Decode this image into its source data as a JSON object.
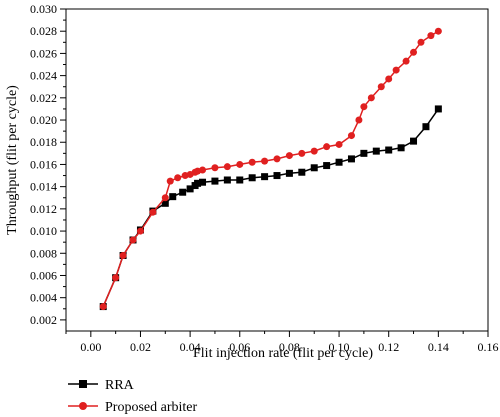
{
  "chart_data": {
    "type": "line",
    "xlabel": "Flit injection rate (flit per cycle)",
    "ylabel": "Throughput (flit per cycle)",
    "xlim": [
      -0.01,
      0.16
    ],
    "ylim": [
      0.001,
      0.03
    ],
    "x_ticks": [
      "0.00",
      "0.02",
      "0.04",
      "0.06",
      "0.08",
      "0.10",
      "0.12",
      "0.14",
      "0.16"
    ],
    "y_ticks": [
      "0.002",
      "0.004",
      "0.006",
      "0.008",
      "0.010",
      "0.012",
      "0.014",
      "0.016",
      "0.018",
      "0.020",
      "0.022",
      "0.024",
      "0.026",
      "0.028",
      "0.030"
    ],
    "grid": false,
    "legend_position": "bottom-left",
    "series": [
      {
        "name": "RRA",
        "color": "#000000",
        "marker": "square",
        "x": [
          0.005,
          0.01,
          0.013,
          0.017,
          0.02,
          0.025,
          0.03,
          0.033,
          0.037,
          0.04,
          0.042,
          0.043,
          0.045,
          0.05,
          0.055,
          0.06,
          0.065,
          0.07,
          0.075,
          0.08,
          0.085,
          0.09,
          0.095,
          0.1,
          0.105,
          0.11,
          0.115,
          0.12,
          0.125,
          0.13,
          0.135,
          0.14
        ],
        "y": [
          0.0032,
          0.0058,
          0.0078,
          0.0092,
          0.0101,
          0.0118,
          0.0125,
          0.0131,
          0.0135,
          0.0138,
          0.0141,
          0.0143,
          0.0144,
          0.0145,
          0.0146,
          0.0146,
          0.0148,
          0.0149,
          0.015,
          0.0152,
          0.0153,
          0.0157,
          0.0159,
          0.0162,
          0.0165,
          0.017,
          0.0172,
          0.0173,
          0.0175,
          0.0181,
          0.0194,
          0.021
        ]
      },
      {
        "name": "Proposed arbiter",
        "color": "#e02020",
        "marker": "circle",
        "x": [
          0.005,
          0.01,
          0.013,
          0.017,
          0.02,
          0.025,
          0.03,
          0.032,
          0.035,
          0.038,
          0.04,
          0.042,
          0.043,
          0.045,
          0.05,
          0.055,
          0.06,
          0.065,
          0.07,
          0.075,
          0.08,
          0.085,
          0.09,
          0.095,
          0.1,
          0.105,
          0.108,
          0.11,
          0.113,
          0.117,
          0.12,
          0.123,
          0.127,
          0.13,
          0.133,
          0.137,
          0.14
        ],
        "y": [
          0.0032,
          0.0058,
          0.0078,
          0.0092,
          0.01,
          0.0117,
          0.013,
          0.0145,
          0.0148,
          0.015,
          0.0151,
          0.0153,
          0.0154,
          0.0155,
          0.0157,
          0.0158,
          0.016,
          0.0162,
          0.0163,
          0.0165,
          0.0168,
          0.017,
          0.0172,
          0.0176,
          0.0178,
          0.0186,
          0.02,
          0.0212,
          0.022,
          0.023,
          0.0237,
          0.0245,
          0.0253,
          0.0261,
          0.027,
          0.0276,
          0.028
        ]
      }
    ]
  }
}
